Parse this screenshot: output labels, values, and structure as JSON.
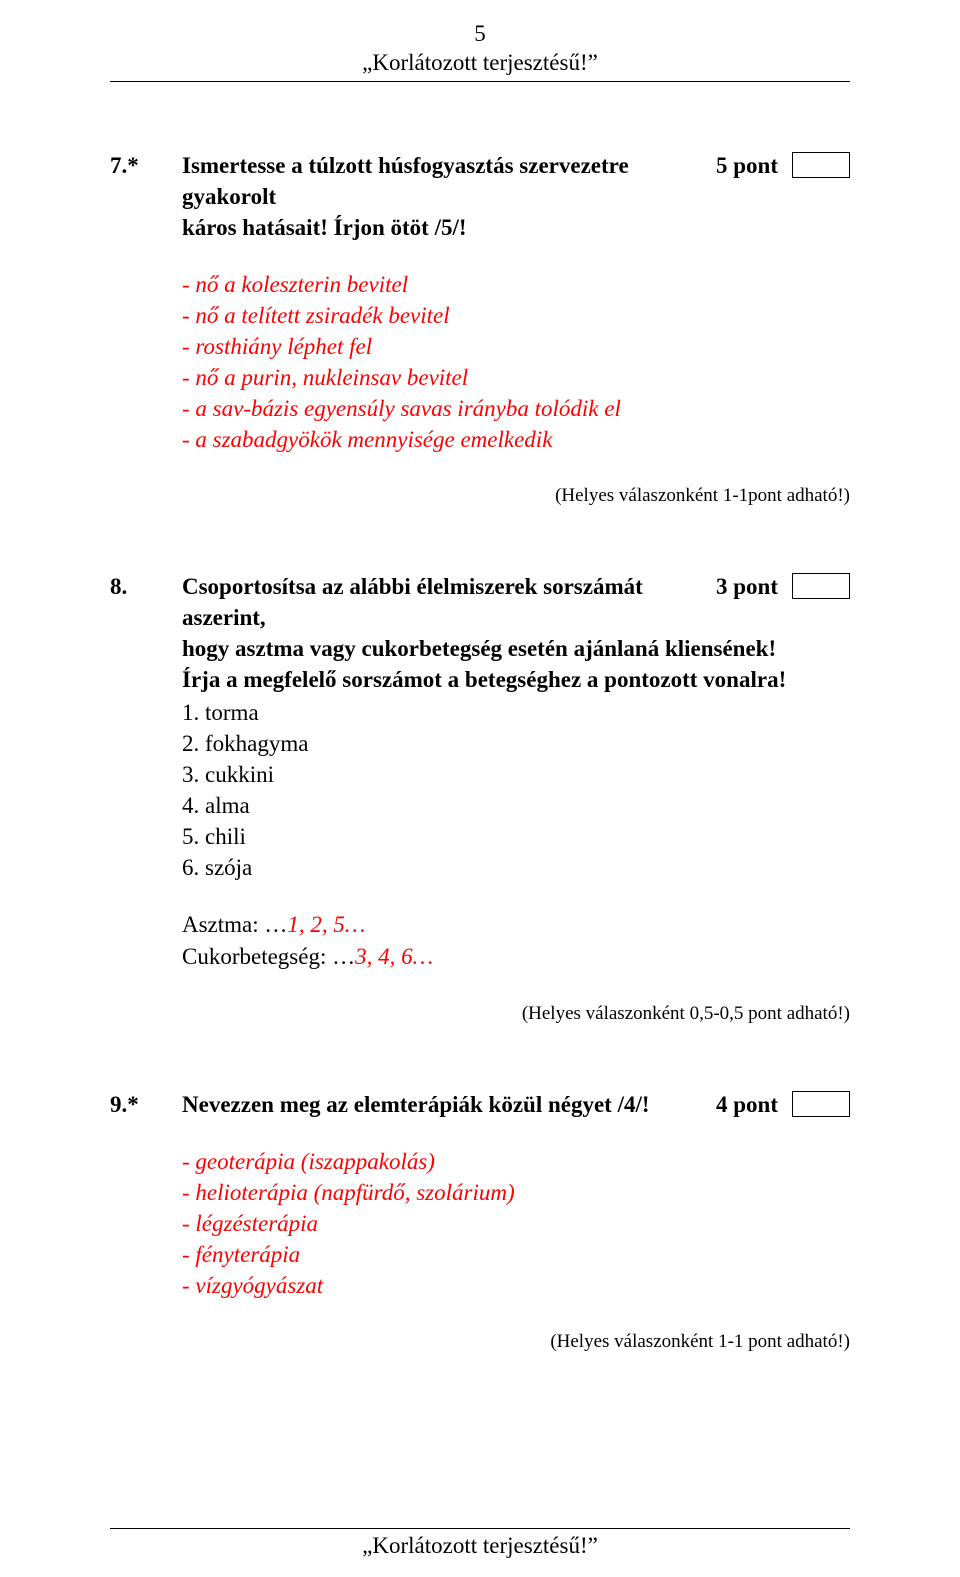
{
  "header": {
    "page_number": "5",
    "classification": "„Korlátozott terjesztésű!”"
  },
  "footer": {
    "classification": "„Korlátozott terjesztésű!”"
  },
  "colors": {
    "text": "#000000",
    "answer": "#ff0000",
    "background": "#ffffff",
    "rule": "#000000"
  },
  "typography": {
    "font_family": "Times New Roman",
    "body_fontsize_pt": 17,
    "hint_fontsize_pt": 14
  },
  "questions": [
    {
      "number": "7.*",
      "title_line1": "Ismertesse a túlzott húsfogyasztás szervezetre gyakorolt",
      "title_line2": "káros hatásait! Írjon ötöt /5/!",
      "points": "5 pont",
      "answers": [
        "- nő a koleszterin bevitel",
        "- nő a telített zsiradék bevitel",
        "- rosthiány léphet fel",
        "- nő a purin, nukleinsav bevitel",
        "- a sav-bázis egyensúly savas irányba tolódik el",
        "- a szabadgyökök mennyisége emelkedik"
      ],
      "hint": "(Helyes válaszonként 1-1pont adható!)"
    },
    {
      "number": "8.",
      "title_line1": "Csoportosítsa az alábbi élelmiszerek sorszámát aszerint,",
      "title_line2": "hogy asztma vagy cukorbetegség esetén ajánlaná kliensének!",
      "title_line3": "Írja a megfelelő sorszámot a betegséghez a pontozott vonalra!",
      "points": "3 pont",
      "items": [
        "1.  torma",
        "2.  fokhagyma",
        "3.  cukkini",
        "4.  alma",
        "5.  chili",
        "6.  szója"
      ],
      "answer_pairs": [
        {
          "label": "Asztma: …",
          "value": "1, 2, 5…"
        },
        {
          "label": "Cukorbetegség: …",
          "value": "3, 4, 6…"
        }
      ],
      "hint": "(Helyes válaszonként 0,5-0,5 pont adható!)"
    },
    {
      "number": "9.*",
      "title_line1": "Nevezzen meg az elemterápiák közül négyet /4/!",
      "points": "4 pont",
      "answers": [
        "- geoterápia (iszappakolás)",
        "- helioterápia (napfürdő, szolárium)",
        "- légzésterápia",
        "- fényterápia",
        "- vízgyógyászat"
      ],
      "hint": "(Helyes válaszonként 1-1 pont adható!)"
    }
  ]
}
